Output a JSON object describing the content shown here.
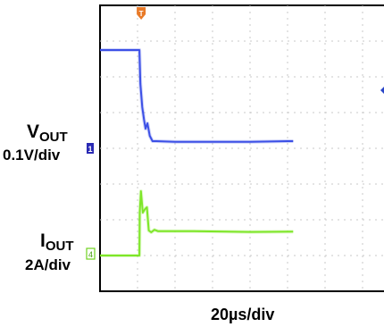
{
  "chart_data": {
    "type": "line",
    "title": "",
    "x_unit": "µs",
    "time_scale": "20µs/div",
    "grid": true,
    "grid_divisions": {
      "x": 8,
      "y": 8
    },
    "trigger_marker": "T",
    "series": [
      {
        "name": "VOUT",
        "channel": "1",
        "label_main": "V",
        "label_sub": "OUT",
        "scale": "0.1V/div",
        "color": "#3c50e6",
        "t": [
          0,
          21,
          21.5,
          22.5,
          23.5,
          24.3,
          25.3,
          26.5,
          28,
          30,
          40,
          60,
          80,
          100,
          103
        ],
        "div": [
          2.55,
          2.55,
          1.6,
          0.95,
          0.6,
          0.35,
          0.5,
          0.15,
          0.0,
          0.0,
          -0.02,
          -0.02,
          -0.02,
          0.0,
          0.0
        ]
      },
      {
        "name": "IOUT",
        "channel": "4",
        "label_main": "I",
        "label_sub": "OUT",
        "scale": "2A/div",
        "color": "#7ee628",
        "t": [
          0,
          21,
          21.2,
          21.8,
          22.8,
          24.0,
          25.0,
          26.0,
          27.3,
          29,
          31,
          50,
          80,
          103
        ],
        "div": [
          0,
          0,
          1.2,
          1.8,
          1.2,
          1.3,
          1.35,
          0.7,
          0.65,
          0.72,
          0.68,
          0.68,
          0.66,
          0.67
        ]
      }
    ]
  }
}
